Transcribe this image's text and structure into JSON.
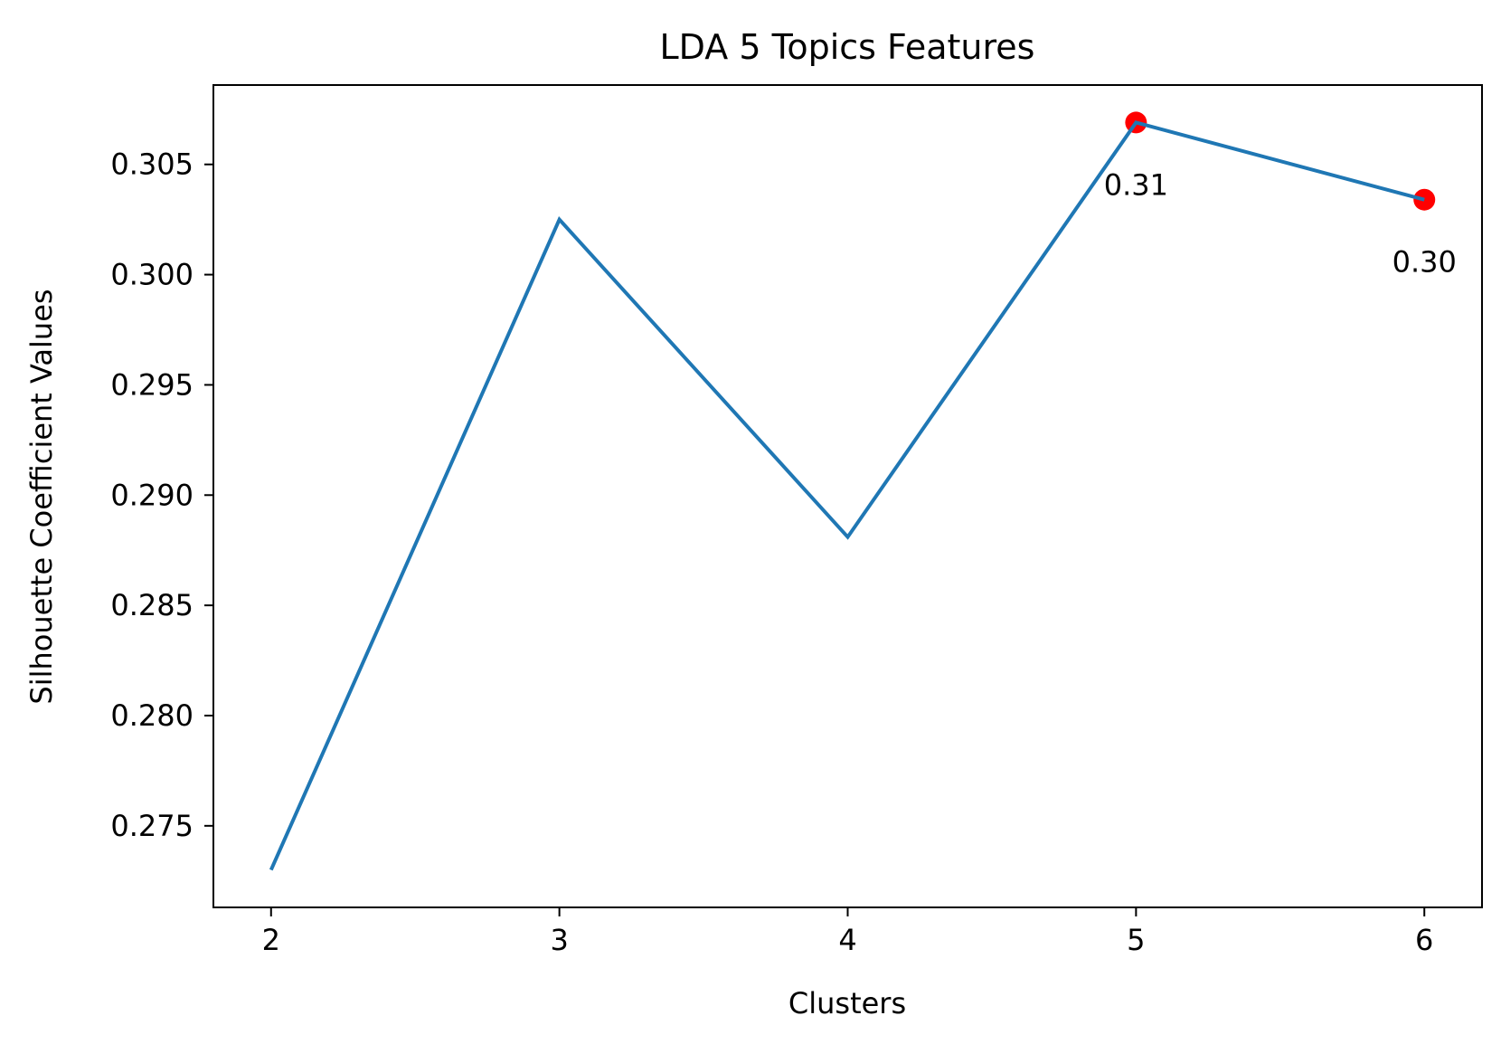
{
  "chart_data": {
    "type": "line",
    "title": "LDA 5 Topics Features",
    "xlabel": "Clusters",
    "ylabel": "Silhouette Coefficient Values",
    "x": [
      2,
      3,
      4,
      5,
      6
    ],
    "series": [
      {
        "values": [
          0.273,
          0.3025,
          0.2881,
          0.3069,
          0.3034
        ],
        "color": "#1f77b4"
      }
    ],
    "highlighted_points": [
      {
        "x": 5,
        "y": 0.3069,
        "label": "0.31",
        "color": "#ff0000"
      },
      {
        "x": 6,
        "y": 0.3034,
        "label": "0.30",
        "color": "#ff0000"
      }
    ],
    "x_ticks": [
      2,
      3,
      4,
      5,
      6
    ],
    "x_tick_labels": [
      "2",
      "3",
      "4",
      "5",
      "6"
    ],
    "y_ticks": [
      0.275,
      0.28,
      0.285,
      0.29,
      0.295,
      0.3,
      0.305
    ],
    "y_tick_labels": [
      "0.275",
      "0.280",
      "0.285",
      "0.290",
      "0.295",
      "0.300",
      "0.305"
    ],
    "xlim": [
      1.8,
      6.2
    ],
    "ylim": [
      0.2713,
      0.3086
    ],
    "grid": false,
    "legend": "none"
  }
}
